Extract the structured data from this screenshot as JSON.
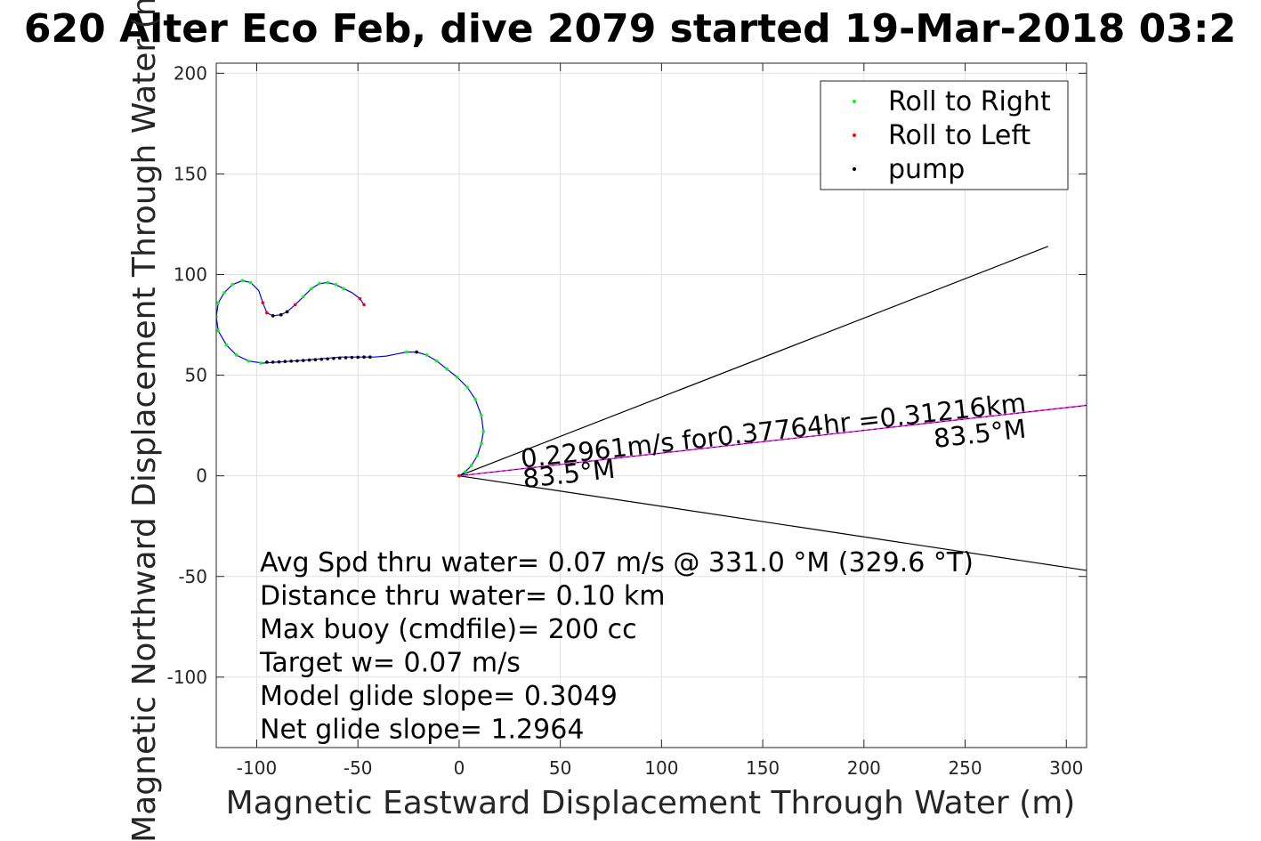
{
  "chart_data": {
    "type": "scatter",
    "title": "620 Alter Eco Feb, dive 2079 started 19-Mar-2018 03:2",
    "xlabel": "Magnetic Eastward Displacement Through Water (m)",
    "ylabel": "Magnetic Northward Displacement Through Water (m)",
    "xlim": [
      -120,
      310
    ],
    "ylim": [
      -135,
      205
    ],
    "xticks": [
      -100,
      -50,
      0,
      50,
      100,
      150,
      200,
      250,
      300
    ],
    "yticks": [
      -100,
      -50,
      0,
      50,
      100,
      150,
      200
    ],
    "grid": true,
    "legend_position": "top-right",
    "track": {
      "color": "#0000ff",
      "points": [
        [
          0,
          0
        ],
        [
          3,
          2
        ],
        [
          6,
          5
        ],
        [
          9,
          10
        ],
        [
          11,
          16
        ],
        [
          12,
          22
        ],
        [
          11,
          30
        ],
        [
          8,
          38
        ],
        [
          4,
          44
        ],
        [
          -1,
          49
        ],
        [
          -6,
          53
        ],
        [
          -11,
          57
        ],
        [
          -16,
          60
        ],
        [
          -21,
          61.5
        ],
        [
          -26,
          61.5
        ],
        [
          -31,
          60.5
        ],
        [
          -36,
          59.5
        ],
        [
          -42,
          59
        ],
        [
          -50,
          59
        ],
        [
          -58,
          59
        ],
        [
          -64,
          58.5
        ],
        [
          -70,
          58
        ],
        [
          -76,
          57.5
        ],
        [
          -82,
          57
        ],
        [
          -90,
          56.5
        ],
        [
          -97,
          56
        ],
        [
          -104,
          57
        ],
        [
          -110,
          60
        ],
        [
          -115,
          65
        ],
        [
          -119,
          72
        ],
        [
          -120,
          79
        ],
        [
          -119,
          86
        ],
        [
          -116,
          91
        ],
        [
          -112,
          95
        ],
        [
          -107,
          97
        ],
        [
          -103,
          96
        ],
        [
          -99,
          92
        ],
        [
          -97,
          86
        ],
        [
          -95,
          81
        ],
        [
          -92,
          79.5
        ],
        [
          -88,
          80
        ],
        [
          -85,
          81.5
        ],
        [
          -81,
          85
        ],
        [
          -77,
          89
        ],
        [
          -73,
          93
        ],
        [
          -69,
          95.5
        ],
        [
          -65,
          96
        ],
        [
          -61,
          95
        ],
        [
          -57,
          93
        ],
        [
          -53,
          91
        ],
        [
          -49,
          88
        ],
        [
          -47,
          85
        ]
      ]
    },
    "series": [
      {
        "name": "Roll to Right",
        "color": "#00ff00",
        "points": [
          [
            0,
            0
          ],
          [
            3,
            2
          ],
          [
            6,
            5
          ],
          [
            9,
            10
          ],
          [
            11,
            16
          ],
          [
            12,
            22
          ],
          [
            11,
            30
          ],
          [
            8,
            38
          ],
          [
            4,
            44
          ],
          [
            -1,
            49
          ],
          [
            -6,
            53
          ],
          [
            -11,
            57
          ],
          [
            -16,
            60
          ],
          [
            -21,
            61.5
          ],
          [
            -26,
            61.5
          ],
          [
            -98,
            56
          ],
          [
            -104,
            57
          ],
          [
            -110,
            60
          ],
          [
            -115,
            65
          ],
          [
            -119,
            72
          ],
          [
            -120,
            79
          ],
          [
            -119,
            86
          ],
          [
            -116,
            91
          ],
          [
            -112,
            95
          ],
          [
            -107,
            97
          ],
          [
            -103,
            96
          ],
          [
            -77,
            89
          ],
          [
            -73,
            93
          ],
          [
            -69,
            95.5
          ],
          [
            -65,
            96
          ],
          [
            -61,
            95
          ],
          [
            -57,
            93
          ]
        ]
      },
      {
        "name": "Roll to Left",
        "color": "#ff0000",
        "points": [
          [
            0,
            0
          ],
          [
            -97,
            86
          ],
          [
            -95,
            81
          ],
          [
            -92,
            79.5
          ],
          [
            -88,
            80
          ],
          [
            -85,
            81.5
          ],
          [
            -81,
            85
          ],
          [
            -49,
            88
          ],
          [
            -47,
            85
          ]
        ]
      },
      {
        "name": "pump",
        "color": "#000000",
        "points": [
          [
            -95,
            56.5
          ],
          [
            -92,
            56.5
          ],
          [
            -89,
            56.6
          ],
          [
            -86,
            56.8
          ],
          [
            -83,
            57
          ],
          [
            -80,
            57.1
          ],
          [
            -77,
            57.3
          ],
          [
            -74,
            57.5
          ],
          [
            -71,
            57.7
          ],
          [
            -68,
            57.9
          ],
          [
            -65,
            58.1
          ],
          [
            -62,
            58.3
          ],
          [
            -59,
            58.5
          ],
          [
            -56,
            58.7
          ],
          [
            -53,
            58.8
          ],
          [
            -50,
            58.9
          ],
          [
            -47,
            59
          ],
          [
            -44,
            59
          ],
          [
            -21,
            61.5
          ],
          [
            -92,
            79.5
          ],
          [
            -88,
            80
          ],
          [
            -85,
            81.5
          ]
        ]
      }
    ],
    "lines": [
      {
        "color": "#000000",
        "from": [
          0,
          0
        ],
        "to": [
          291,
          114
        ]
      },
      {
        "color": "#000000",
        "from": [
          0,
          0
        ],
        "to": [
          310,
          -47
        ]
      },
      {
        "color": "#ff00ff",
        "from": [
          0,
          0
        ],
        "to": [
          310,
          35
        ]
      }
    ],
    "annotations": [
      {
        "text": "0.22961m/s for0.37764hr =0.31216km",
        "at": [
          31,
          4
        ],
        "angle_deg": 6.4
      },
      {
        "text": "83.5°M",
        "at": [
          32,
          -6
        ],
        "angle_deg": 6.4
      },
      {
        "text": "83.5°M",
        "at": [
          235,
          14
        ],
        "angle_deg": 6.4
      }
    ],
    "stats_lines": [
      "Avg Spd thru water=  0.07 m/s @ 331.0 °M (329.6 °T)",
      "Distance thru water=  0.10 km",
      "Max buoy (cmdfile)= 200 cc",
      "Target w= 0.07 m/s",
      "Model glide slope= 0.3049",
      "Net glide slope= 1.2964"
    ]
  }
}
